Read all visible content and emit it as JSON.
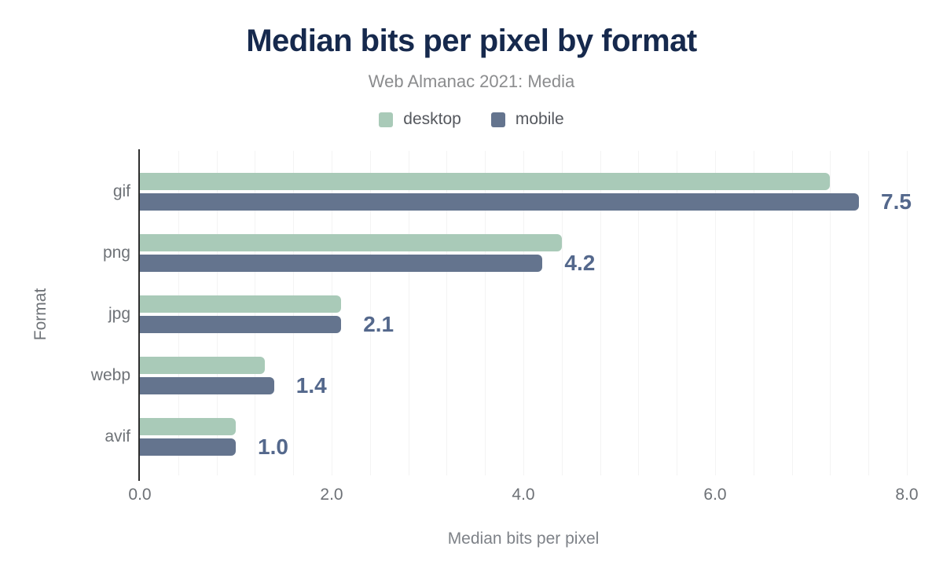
{
  "header": {
    "title": "Median bits per pixel by format",
    "subtitle": "Web Almanac 2021: Media"
  },
  "axes": {
    "x_title": "Median bits per pixel",
    "y_title": "Format",
    "x_ticks": [
      "0.0",
      "2.0",
      "4.0",
      "6.0",
      "8.0"
    ]
  },
  "colors": {
    "title": "#16294d",
    "subtitle": "#8b8c8e",
    "desktop": "#a9cab8",
    "mobile": "#64748e",
    "value_label": "#54688c",
    "axis_text": "#6e7277",
    "axis_line": "#2e2e2e",
    "gridline": "#f3f3f3"
  },
  "legend": {
    "items": [
      {
        "label": "desktop",
        "color_key": "desktop"
      },
      {
        "label": "mobile",
        "color_key": "mobile"
      }
    ]
  },
  "chart_data": {
    "type": "bar",
    "orientation": "horizontal",
    "title": "Median bits per pixel by format",
    "subtitle": "Web Almanac 2021: Media",
    "xlabel": "Median bits per pixel",
    "ylabel": "Format",
    "categories": [
      "gif",
      "png",
      "jpg",
      "webp",
      "avif"
    ],
    "series": [
      {
        "name": "desktop",
        "values": [
          7.2,
          4.4,
          2.1,
          1.3,
          1.0
        ]
      },
      {
        "name": "mobile",
        "values": [
          7.5,
          4.2,
          2.1,
          1.4,
          1.0
        ]
      }
    ],
    "value_labels": {
      "on_series": "mobile",
      "values": [
        "7.5",
        "4.2",
        "2.1",
        "1.4",
        "1.0"
      ]
    },
    "xlim": [
      0,
      8
    ],
    "x_tick_step": 2.0,
    "gridline_step": 0.4,
    "grid": "vertical",
    "legend_position": "top"
  }
}
